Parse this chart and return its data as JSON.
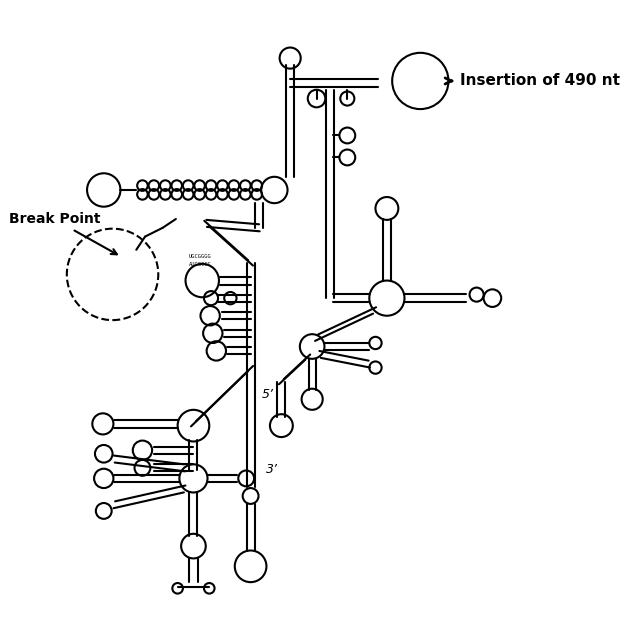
{
  "background": "#ffffff",
  "line_color": "#000000",
  "line_width": 1.5,
  "annotation_insertion": "Insertion of 490 nt",
  "annotation_break": "Break Point",
  "label_5prime": "5’",
  "label_3prime": "3’"
}
